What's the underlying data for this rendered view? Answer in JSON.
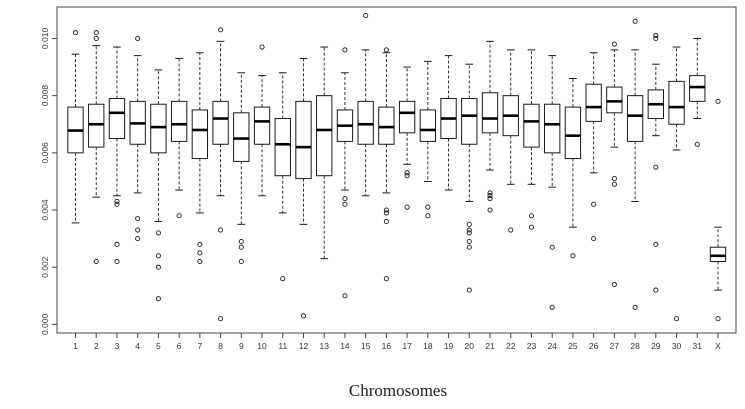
{
  "chart_data": {
    "type": "box",
    "xlabel": "Chromosomes",
    "ylabel": "",
    "ylim": [
      -0.0003,
      0.0111
    ],
    "yticks": [
      0.0,
      0.002,
      0.004,
      0.006,
      0.008,
      0.01
    ],
    "ytick_labels": [
      "0.000",
      "0.002",
      "0.004",
      "0.006",
      "0.008",
      "0.010"
    ],
    "categories": [
      "1",
      "2",
      "3",
      "4",
      "5",
      "6",
      "7",
      "8",
      "9",
      "10",
      "11",
      "12",
      "13",
      "14",
      "15",
      "16",
      "17",
      "18",
      "19",
      "20",
      "21",
      "22",
      "23",
      "24",
      "25",
      "26",
      "27",
      "28",
      "29",
      "30",
      "31",
      "X"
    ],
    "boxes": [
      {
        "label": "1",
        "whislo": 0.00355,
        "q1": 0.006,
        "med": 0.00678,
        "q3": 0.0076,
        "whishi": 0.00945,
        "outliers": [
          0.0102
        ]
      },
      {
        "label": "2",
        "whislo": 0.00445,
        "q1": 0.0062,
        "med": 0.007,
        "q3": 0.0077,
        "whishi": 0.00975,
        "outliers": [
          0.0102,
          0.01,
          0.0022
        ]
      },
      {
        "label": "3",
        "whislo": 0.0045,
        "q1": 0.0065,
        "med": 0.0074,
        "q3": 0.0079,
        "whishi": 0.0097,
        "outliers": [
          0.0043,
          0.0042,
          0.0028,
          0.0022
        ]
      },
      {
        "label": "4",
        "whislo": 0.0046,
        "q1": 0.0063,
        "med": 0.00703,
        "q3": 0.0078,
        "whishi": 0.0094,
        "outliers": [
          0.01,
          0.0037,
          0.0033,
          0.003
        ]
      },
      {
        "label": "5",
        "whislo": 0.0036,
        "q1": 0.006,
        "med": 0.0069,
        "q3": 0.0077,
        "whishi": 0.0089,
        "outliers": [
          0.0032,
          0.0024,
          0.002,
          0.0009
        ]
      },
      {
        "label": "6",
        "whislo": 0.0047,
        "q1": 0.0064,
        "med": 0.007,
        "q3": 0.0078,
        "whishi": 0.0093,
        "outliers": [
          0.0038
        ]
      },
      {
        "label": "7",
        "whislo": 0.0039,
        "q1": 0.0058,
        "med": 0.0068,
        "q3": 0.0075,
        "whishi": 0.0095,
        "outliers": [
          0.0028,
          0.0025,
          0.0022
        ]
      },
      {
        "label": "8",
        "whislo": 0.0045,
        "q1": 0.0063,
        "med": 0.0072,
        "q3": 0.0078,
        "whishi": 0.0099,
        "outliers": [
          0.0103,
          0.0033,
          0.0002
        ]
      },
      {
        "label": "9",
        "whislo": 0.0035,
        "q1": 0.0057,
        "med": 0.0065,
        "q3": 0.0074,
        "whishi": 0.0088,
        "outliers": [
          0.0029,
          0.0027,
          0.0022
        ]
      },
      {
        "label": "10",
        "whislo": 0.0045,
        "q1": 0.0063,
        "med": 0.0071,
        "q3": 0.0076,
        "whishi": 0.0087,
        "outliers": [
          0.0097
        ]
      },
      {
        "label": "11",
        "whislo": 0.0039,
        "q1": 0.0052,
        "med": 0.0063,
        "q3": 0.0072,
        "whishi": 0.0088,
        "outliers": [
          0.0016
        ]
      },
      {
        "label": "12",
        "whislo": 0.0035,
        "q1": 0.0051,
        "med": 0.0062,
        "q3": 0.0078,
        "whishi": 0.0093,
        "outliers": [
          0.0003
        ]
      },
      {
        "label": "13",
        "whislo": 0.0023,
        "q1": 0.0052,
        "med": 0.0068,
        "q3": 0.008,
        "whishi": 0.0097,
        "outliers": []
      },
      {
        "label": "14",
        "whislo": 0.0047,
        "q1": 0.0064,
        "med": 0.00695,
        "q3": 0.0075,
        "whishi": 0.0088,
        "outliers": [
          0.0096,
          0.0044,
          0.0042,
          0.001
        ]
      },
      {
        "label": "15",
        "whislo": 0.0045,
        "q1": 0.0063,
        "med": 0.007,
        "q3": 0.0078,
        "whishi": 0.0096,
        "outliers": [
          0.0108
        ]
      },
      {
        "label": "16",
        "whislo": 0.0046,
        "q1": 0.0063,
        "med": 0.0069,
        "q3": 0.0076,
        "whishi": 0.0095,
        "outliers": [
          0.0096,
          0.004,
          0.0039,
          0.0036,
          0.0016
        ]
      },
      {
        "label": "17",
        "whislo": 0.0056,
        "q1": 0.0067,
        "med": 0.0074,
        "q3": 0.0078,
        "whishi": 0.009,
        "outliers": [
          0.0053,
          0.0052,
          0.0041
        ]
      },
      {
        "label": "18",
        "whislo": 0.005,
        "q1": 0.0064,
        "med": 0.0068,
        "q3": 0.0075,
        "whishi": 0.0092,
        "outliers": [
          0.0041,
          0.0038
        ]
      },
      {
        "label": "19",
        "whislo": 0.0047,
        "q1": 0.0065,
        "med": 0.0072,
        "q3": 0.0079,
        "whishi": 0.0094,
        "outliers": []
      },
      {
        "label": "20",
        "whislo": 0.0043,
        "q1": 0.0063,
        "med": 0.0073,
        "q3": 0.0079,
        "whishi": 0.0091,
        "outliers": [
          0.0035,
          0.0033,
          0.0032,
          0.0029,
          0.0027,
          0.0012
        ]
      },
      {
        "label": "21",
        "whislo": 0.0054,
        "q1": 0.0067,
        "med": 0.0072,
        "q3": 0.0081,
        "whishi": 0.0099,
        "outliers": [
          0.0046,
          0.0045,
          0.0044,
          0.004
        ]
      },
      {
        "label": "22",
        "whislo": 0.0049,
        "q1": 0.0066,
        "med": 0.0073,
        "q3": 0.008,
        "whishi": 0.0096,
        "outliers": [
          0.0033
        ]
      },
      {
        "label": "23",
        "whislo": 0.0049,
        "q1": 0.0062,
        "med": 0.0071,
        "q3": 0.0077,
        "whishi": 0.0096,
        "outliers": [
          0.0038,
          0.0034
        ]
      },
      {
        "label": "24",
        "whislo": 0.0048,
        "q1": 0.006,
        "med": 0.007,
        "q3": 0.0077,
        "whishi": 0.0094,
        "outliers": [
          0.0027,
          0.0006
        ]
      },
      {
        "label": "25",
        "whislo": 0.0034,
        "q1": 0.0058,
        "med": 0.0066,
        "q3": 0.0076,
        "whishi": 0.0086,
        "outliers": [
          0.0024
        ]
      },
      {
        "label": "26",
        "whislo": 0.0053,
        "q1": 0.0071,
        "med": 0.0076,
        "q3": 0.0084,
        "whishi": 0.0095,
        "outliers": [
          0.0042,
          0.003
        ]
      },
      {
        "label": "27",
        "whislo": 0.0062,
        "q1": 0.0074,
        "med": 0.0078,
        "q3": 0.0083,
        "whishi": 0.0096,
        "outliers": [
          0.0098,
          0.0051,
          0.0049,
          0.0014
        ]
      },
      {
        "label": "28",
        "whislo": 0.0043,
        "q1": 0.0064,
        "med": 0.0073,
        "q3": 0.008,
        "whishi": 0.0096,
        "outliers": [
          0.0106,
          0.0006
        ]
      },
      {
        "label": "29",
        "whislo": 0.0066,
        "q1": 0.0072,
        "med": 0.0077,
        "q3": 0.0082,
        "whishi": 0.0091,
        "outliers": [
          0.0101,
          0.01,
          0.0055,
          0.0028,
          0.0012
        ]
      },
      {
        "label": "30",
        "whislo": 0.0061,
        "q1": 0.007,
        "med": 0.0076,
        "q3": 0.0085,
        "whishi": 0.0097,
        "outliers": [
          0.0002
        ]
      },
      {
        "label": "31",
        "whislo": 0.0072,
        "q1": 0.0078,
        "med": 0.0083,
        "q3": 0.0087,
        "whishi": 0.01,
        "outliers": [
          0.0063
        ]
      },
      {
        "label": "X",
        "whislo": 0.0012,
        "q1": 0.0022,
        "med": 0.0024,
        "q3": 0.0027,
        "whishi": 0.0034,
        "outliers": [
          0.0078,
          0.0002
        ]
      }
    ],
    "grid": false,
    "legend": "none",
    "colors": {
      "stroke": "#1a1a1a",
      "median": "#000000",
      "background": "#ffffff"
    }
  }
}
